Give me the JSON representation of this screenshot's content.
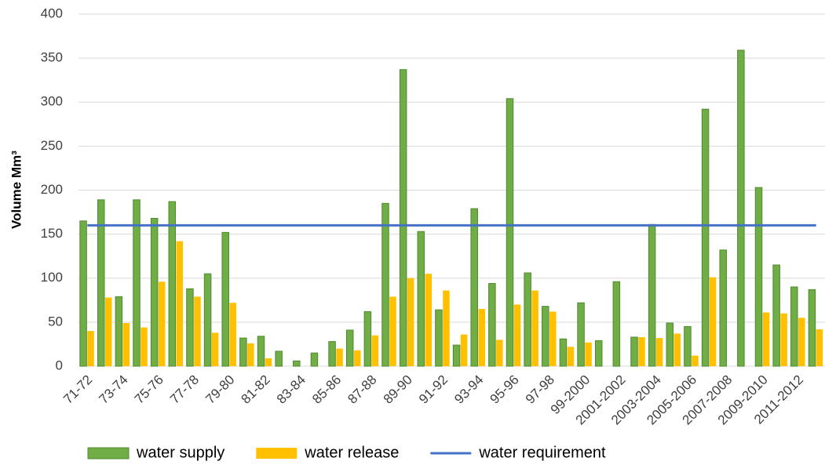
{
  "chart_data": {
    "type": "bar",
    "y_label": "Volume Mm³",
    "categories": [
      "71-72",
      null,
      "73-74",
      null,
      "75-76",
      null,
      "77-78",
      null,
      "79-80",
      null,
      "81-82",
      null,
      "83-84",
      null,
      "85-86",
      null,
      "87-88",
      null,
      "89-90",
      null,
      "91-92",
      null,
      "93-94",
      null,
      "95-96",
      null,
      "97-98",
      null,
      "99-2000",
      null,
      "2001-2002",
      null,
      "2003-2004",
      null,
      "2005-2006",
      null,
      "2007-2008",
      null,
      "2009-2010",
      null,
      "2011-2012",
      null
    ],
    "series": [
      {
        "name": "water supply",
        "color": "#70ad47",
        "values": [
          165,
          189,
          79,
          189,
          168,
          187,
          88,
          105,
          152,
          32,
          34,
          17,
          6,
          15,
          28,
          41,
          62,
          185,
          337,
          153,
          64,
          24,
          179,
          94,
          304,
          106,
          68,
          31,
          72,
          29,
          96,
          33,
          161,
          49,
          45,
          292,
          132,
          359,
          203,
          115,
          90,
          87
        ]
      },
      {
        "name": "water release",
        "color": "#ffc000",
        "values": [
          40,
          78,
          49,
          44,
          96,
          142,
          79,
          38,
          72,
          26,
          9,
          0,
          0,
          0,
          20,
          18,
          35,
          79,
          100,
          105,
          86,
          36,
          65,
          30,
          70,
          86,
          62,
          22,
          27,
          0,
          0,
          33,
          32,
          37,
          12,
          101,
          0,
          0,
          61,
          60,
          55,
          42
        ]
      },
      {
        "name": "water requirement",
        "color": "#4472c4",
        "type": "line",
        "values": [
          160,
          160,
          160,
          160,
          160,
          160,
          160,
          160,
          160,
          160,
          160,
          160,
          160,
          160,
          160,
          160,
          160,
          160,
          160,
          160,
          160,
          160,
          160,
          160,
          160,
          160,
          160,
          160,
          160,
          160,
          160,
          160,
          160,
          160,
          160,
          160,
          160,
          160,
          160,
          160,
          160,
          160
        ]
      }
    ],
    "ylim": [
      0,
      400
    ],
    "yticks": [
      0,
      50,
      100,
      150,
      200,
      250,
      300,
      350,
      400
    ],
    "grid": true,
    "legend": "bottom"
  }
}
